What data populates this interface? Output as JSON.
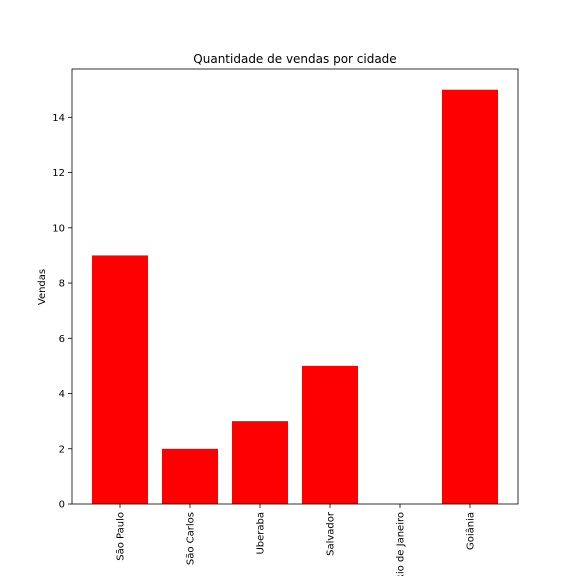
{
  "chart_data": {
    "type": "bar",
    "title": "Quantidade de vendas por cidade",
    "xlabel": "",
    "ylabel": "Vendas",
    "categories": [
      "São Paulo",
      "São Carlos",
      "Uberaba",
      "Salvador",
      "Rio de Janeiro",
      "Goiânia"
    ],
    "values": [
      9,
      2,
      3,
      5,
      0,
      15
    ],
    "ylim": [
      0,
      15.75
    ],
    "yticks": [
      0,
      2,
      4,
      6,
      8,
      10,
      12,
      14
    ],
    "bar_color": "#ff0000",
    "grid": false
  }
}
